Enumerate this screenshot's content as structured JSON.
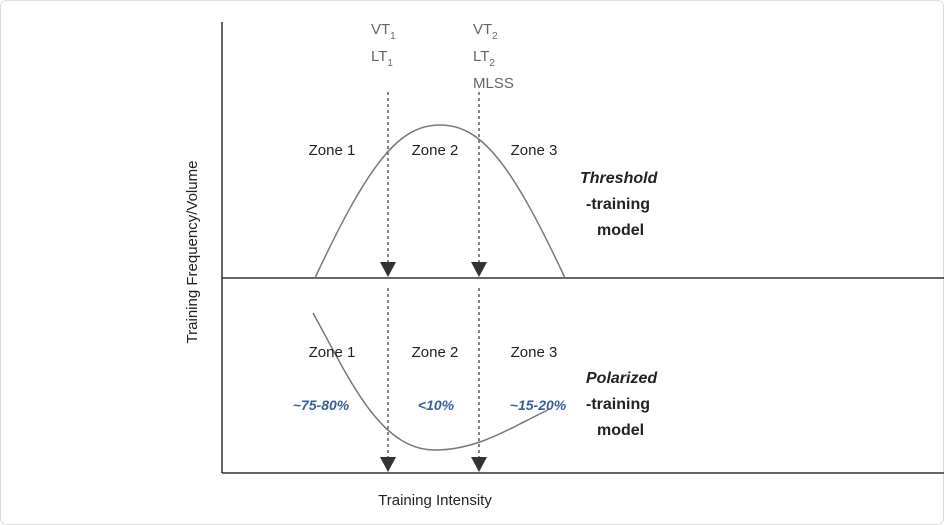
{
  "thresholds": [
    {
      "lines": [
        {
          "text": "VT",
          "sub": "1"
        },
        {
          "text": "LT",
          "sub": "1"
        }
      ]
    },
    {
      "lines": [
        {
          "text": "VT",
          "sub": "2"
        },
        {
          "text": "LT",
          "sub": "2"
        },
        {
          "text": "MLSS"
        }
      ]
    }
  ],
  "threshold_model": {
    "zones": [
      "Zone 1",
      "Zone 2",
      "Zone 3"
    ],
    "title": "Threshold",
    "lines": [
      "-training",
      "model"
    ]
  },
  "polarized_model": {
    "zones": [
      "Zone 1",
      "Zone 2",
      "Zone 3"
    ],
    "shares": [
      "~75-80%",
      "<10%",
      "~15-20%"
    ],
    "title": "Polarized",
    "lines": [
      "-training",
      "model"
    ]
  },
  "y_axis_label": "Training Frequency/Volume",
  "x_axis_label": "Training Intensity"
}
